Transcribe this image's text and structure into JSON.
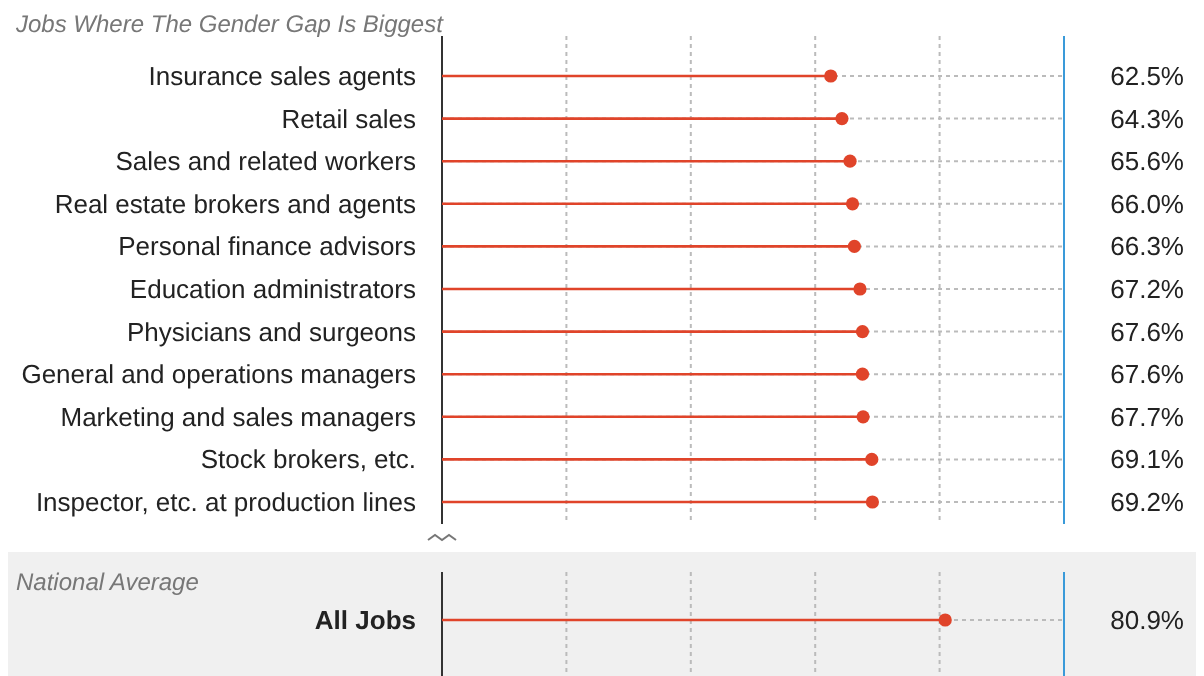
{
  "chart_data": {
    "type": "lollipop",
    "orientation": "horizontal",
    "title": "Jobs Where The Gender Gap Is Biggest",
    "annotations": [
      "National Average"
    ],
    "categories": [
      "Insurance sales agents",
      "Retail sales",
      "Sales and related workers",
      "Real estate brokers and agents",
      "Personal finance advisors",
      "Education administrators",
      "Physicians and surgeons",
      "General and operations managers",
      "Marketing and sales managers",
      "Stock brokers, etc.",
      "Inspector, etc. at production lines",
      "All Jobs"
    ],
    "values": [
      62.5,
      64.3,
      65.6,
      66.0,
      66.3,
      67.2,
      67.6,
      67.6,
      67.7,
      69.1,
      69.2,
      80.9
    ],
    "value_labels": [
      "62.5%",
      "64.3%",
      "65.6%",
      "66.0%",
      "66.3%",
      "67.2%",
      "67.6%",
      "67.6%",
      "67.7%",
      "69.1%",
      "69.2%",
      "80.9%"
    ],
    "color": "#e0442a",
    "xlim": [
      0,
      100
    ],
    "xticks": [
      {
        "value": 20,
        "label": null
      },
      {
        "value": 40,
        "label": null
      },
      {
        "value": 60,
        "label": null
      },
      {
        "value": 80,
        "label": null
      }
    ],
    "grid": true,
    "tick_labels": "y"
  }
}
